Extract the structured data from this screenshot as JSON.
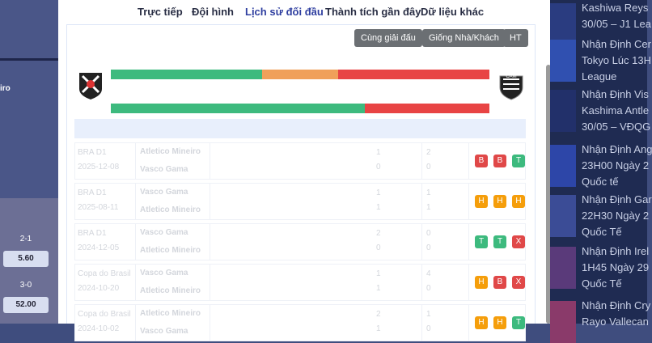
{
  "left": {
    "team": "iro",
    "odds": [
      {
        "score": "2-1",
        "value": "5.60"
      },
      {
        "score": "3-0",
        "value": "52.00"
      }
    ]
  },
  "tabs": [
    "Trực tiếp",
    "Đội hình",
    "Lịch sử đối đầu",
    "Thành tích gần đây",
    "Dữ liệu khác"
  ],
  "active_tab": 2,
  "filters": [
    "Cùng giải đấu",
    "Giống Nhà/Khách",
    "HT"
  ],
  "bars": [
    {
      "values": [
        40,
        20,
        40
      ],
      "colors": [
        "#3dba7e",
        "#f0a05a",
        "#e84444"
      ]
    },
    {
      "values": [
        67,
        33
      ],
      "colors": [
        "#3dba7e",
        "#e84444"
      ]
    }
  ],
  "badge_colors": {
    "B": "#e04848",
    "T": "#3dba7e",
    "H": "#f59e0b",
    "X": "#e04848"
  },
  "matches": [
    {
      "league": "BRA D1",
      "date": "2025-12-08",
      "home": "Atletico Mineiro",
      "away": "Vasco Gama",
      "score": [
        "1",
        "0"
      ],
      "ht": [
        "2",
        "0"
      ],
      "badges": [
        "B",
        "B",
        "T"
      ]
    },
    {
      "league": "BRA D1",
      "date": "2025-08-11",
      "home": "Vasco Gama",
      "away": "Atletico Mineiro",
      "score": [
        "1",
        "1"
      ],
      "ht": [
        "1",
        "1"
      ],
      "badges": [
        "H",
        "H",
        "H"
      ]
    },
    {
      "league": "BRA D1",
      "date": "2024-12-05",
      "home": "Vasco Gama",
      "away": "Atletico Mineiro",
      "score": [
        "2",
        "0"
      ],
      "ht": [
        "0",
        "0"
      ],
      "badges": [
        "T",
        "T",
        "X"
      ]
    },
    {
      "league": "Copa do Brasil",
      "date": "2024-10-20",
      "home": "Vasco Gama",
      "away": "Atletico Mineiro",
      "score": [
        "1",
        "1"
      ],
      "ht": [
        "4",
        "0"
      ],
      "badges": [
        "H",
        "B",
        "X"
      ]
    },
    {
      "league": "Copa do Brasil",
      "date": "2024-10-02",
      "home": "Atletico Mineiro",
      "away": "Vasco Gama",
      "score": [
        "2",
        "1"
      ],
      "ht": [
        "1",
        "0"
      ],
      "badges": [
        "H",
        "H",
        "T"
      ]
    }
  ],
  "news": [
    [
      "Kashiwa Reys",
      "30/05 – J1 Lea"
    ],
    [
      "Nhận Định Cer",
      "Tokyo Lúc 13H",
      "League"
    ],
    [
      "Nhận Định Vis",
      "Kashima Antle",
      "30/05 – VĐQG"
    ],
    [
      "Nhận Định Ang",
      "23H00 Ngày 2",
      "Quốc tế"
    ],
    [
      "Nhận Định Gar",
      "22H30 Ngày 2",
      "Quốc Tế"
    ],
    [
      "Nhận Định Irel",
      "1H45 Ngày 29",
      "Quốc Tế"
    ],
    [
      "Nhận Định Cry",
      "Rayo Vallecan"
    ]
  ]
}
